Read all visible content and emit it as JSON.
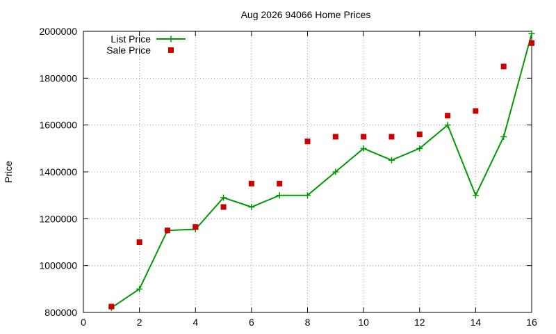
{
  "chart_data": {
    "type": "line",
    "title": "Aug 2026 94066 Home Prices",
    "xlabel": "",
    "ylabel": "Price",
    "xlim": [
      0,
      16
    ],
    "ylim": [
      800000,
      2000000
    ],
    "x_ticks": [
      0,
      2,
      4,
      6,
      8,
      10,
      12,
      14,
      16
    ],
    "y_ticks": [
      800000,
      1000000,
      1200000,
      1400000,
      1600000,
      1800000,
      2000000
    ],
    "grid": true,
    "legend_position": "top-left",
    "series": [
      {
        "name": "List Price",
        "style": "line-points",
        "color": "#009900",
        "x": [
          1,
          2,
          3,
          4,
          5,
          6,
          7,
          8,
          9,
          10,
          11,
          12,
          13,
          14,
          15,
          16
        ],
        "values": [
          820000,
          900000,
          1150000,
          1155000,
          1290000,
          1250000,
          1300000,
          1300000,
          1400000,
          1500000,
          1450000,
          1500000,
          1600000,
          1300000,
          1550000,
          1990000
        ]
      },
      {
        "name": "Sale Price",
        "style": "points",
        "color": "#cc0000",
        "x": [
          1,
          2,
          3,
          4,
          5,
          6,
          7,
          8,
          9,
          10,
          11,
          12,
          13,
          14,
          15,
          16
        ],
        "values": [
          825000,
          1100000,
          1150000,
          1165000,
          1250000,
          1350000,
          1350000,
          1530000,
          1550000,
          1550000,
          1550000,
          1560000,
          1640000,
          1660000,
          1850000,
          1950000
        ]
      }
    ]
  }
}
